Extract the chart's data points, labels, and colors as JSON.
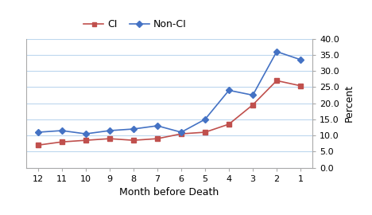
{
  "months": [
    12,
    11,
    10,
    9,
    8,
    7,
    6,
    5,
    4,
    3,
    2,
    1
  ],
  "ci": [
    7.0,
    8.0,
    8.5,
    9.0,
    8.5,
    9.0,
    10.5,
    11.0,
    13.5,
    19.5,
    27.0,
    25.4
  ],
  "non_ci": [
    11.0,
    11.5,
    10.5,
    11.5,
    12.0,
    13.0,
    11.0,
    15.0,
    24.0,
    22.5,
    36.0,
    33.5
  ],
  "ci_color": "#c0504d",
  "non_ci_color": "#4472c4",
  "ci_label": "CI",
  "non_ci_label": "Non-CI",
  "xlabel": "Month before Death",
  "ylabel": "Percent",
  "ylim": [
    0.0,
    40.0
  ],
  "yticks": [
    0.0,
    5.0,
    10.0,
    15.0,
    20.0,
    25.0,
    30.0,
    35.0,
    40.0
  ],
  "background_color": "#ffffff",
  "grid_color": "#bdd7ee",
  "axis_fontsize": 9,
  "tick_fontsize": 8,
  "legend_fontsize": 9
}
